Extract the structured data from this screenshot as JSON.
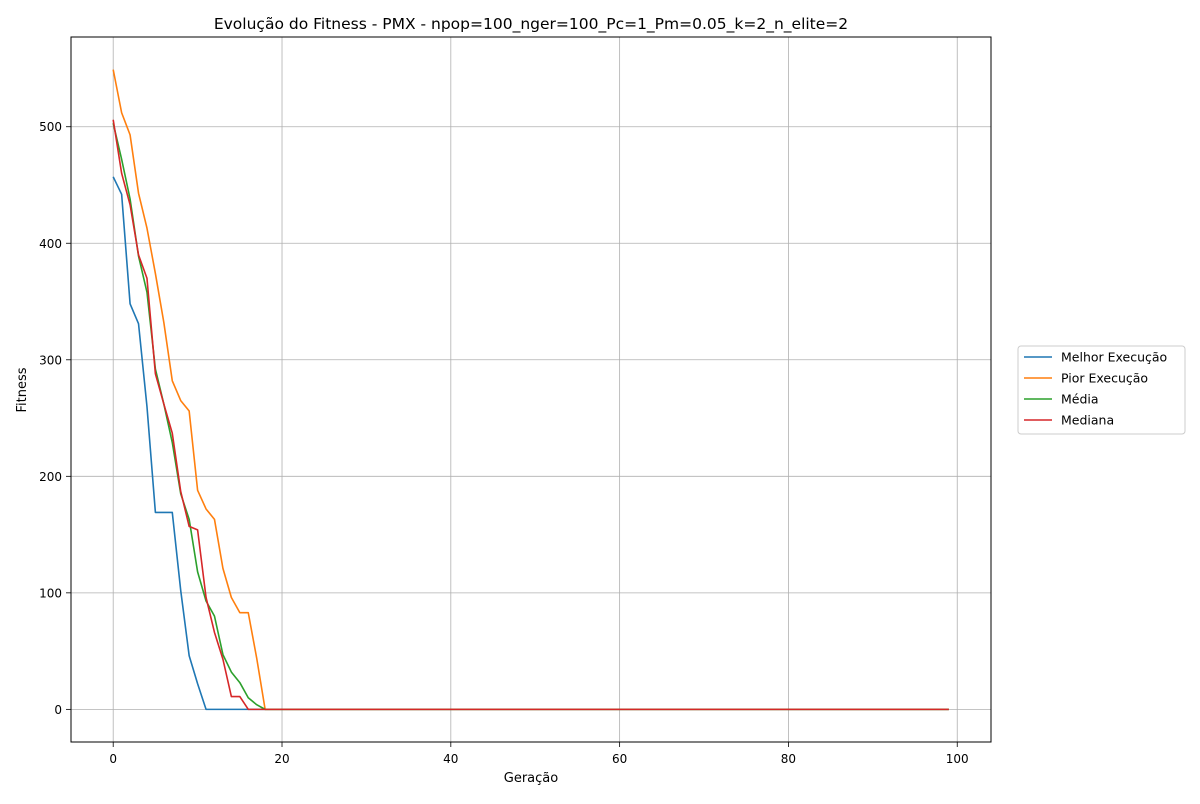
{
  "chart_data": {
    "type": "line",
    "title": "Evolução do Fitness - PMX - npop=100_nger=100_Pc=1_Pm=0.05_k=2_n_elite=2",
    "xlabel": "Geração",
    "ylabel": "Fitness",
    "xlim": [
      -5,
      104
    ],
    "ylim": [
      -28,
      577
    ],
    "xticks": [
      0,
      20,
      40,
      60,
      80,
      100
    ],
    "yticks": [
      0,
      100,
      200,
      300,
      400,
      500
    ],
    "grid": true,
    "legend_position": "center-right, outside plot",
    "series": [
      {
        "name": "Melhor Execução",
        "color": "#1f77b4",
        "x": [
          0,
          1,
          2,
          3,
          4,
          5,
          6,
          7,
          8,
          9,
          10,
          11,
          12,
          13,
          14,
          15,
          16,
          17,
          18,
          99
        ],
        "y": [
          457,
          442,
          348,
          331,
          260,
          169,
          169,
          169,
          102,
          46,
          22,
          0,
          0,
          0,
          0,
          0,
          0,
          0,
          0,
          0
        ]
      },
      {
        "name": "Pior Execução",
        "color": "#ff7f0e",
        "x": [
          0,
          1,
          2,
          3,
          4,
          5,
          6,
          7,
          8,
          9,
          10,
          11,
          12,
          13,
          14,
          15,
          16,
          17,
          18,
          99
        ],
        "y": [
          549,
          512,
          493,
          443,
          413,
          374,
          332,
          282,
          265,
          256,
          188,
          172,
          163,
          121,
          96,
          83,
          83,
          44,
          0,
          0
        ]
      },
      {
        "name": "Média",
        "color": "#2ca02c",
        "x": [
          0,
          1,
          2,
          3,
          4,
          5,
          6,
          7,
          8,
          9,
          10,
          11,
          12,
          13,
          14,
          15,
          16,
          17,
          18,
          99
        ],
        "y": [
          503,
          472,
          438,
          389,
          358,
          292,
          262,
          229,
          185,
          163,
          118,
          93,
          80,
          47,
          32,
          23,
          10,
          4,
          0,
          0
        ]
      },
      {
        "name": "Mediana",
        "color": "#d62728",
        "x": [
          0,
          1,
          2,
          3,
          4,
          5,
          6,
          7,
          8,
          9,
          10,
          11,
          12,
          13,
          14,
          15,
          16,
          17,
          18,
          99
        ],
        "y": [
          506,
          460,
          433,
          390,
          370,
          288,
          262,
          237,
          187,
          157,
          154,
          96,
          66,
          43,
          11,
          11,
          0,
          0,
          0,
          0
        ]
      }
    ]
  }
}
